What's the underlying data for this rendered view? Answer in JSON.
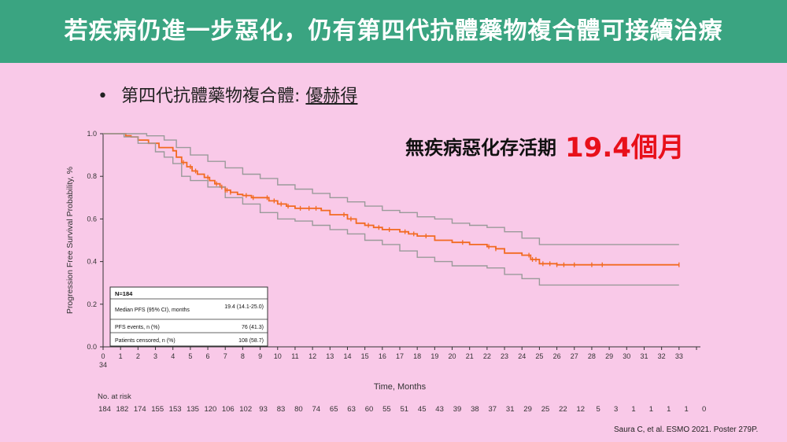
{
  "header": {
    "title": "若疾病仍進一步惡化，仍有第四代抗體藥物複合體可接續治療",
    "bg_color": "#3aa481"
  },
  "bullet": {
    "dot": "•",
    "prefix": "第四代抗體藥物複合體: ",
    "drug": "優赫得"
  },
  "pfs_callout": {
    "label": "無疾病惡化存活期",
    "value": "19.4個月",
    "value_color": "#e8101a"
  },
  "citation": "Saura C, et al. ESMO 2021. Poster 279P.",
  "stats_table": {
    "n_label": "N=184",
    "rows": [
      {
        "label": "Median PFS (95% CI), months",
        "value": "19.4 (14.1-25.0)"
      },
      {
        "label": "PFS events, n (%)",
        "value": "76 (41.3)"
      },
      {
        "label": "Patients censored, n (%)",
        "value": "108 (58.7)"
      }
    ]
  },
  "chart_data": {
    "type": "line",
    "title": "",
    "xlabel": "Time, Months",
    "ylabel": "Progression Free Survival Probability, %",
    "xlim": [
      0,
      34
    ],
    "ylim": [
      0,
      1.0
    ],
    "x_ticks": [
      0,
      1,
      2,
      3,
      4,
      5,
      6,
      7,
      8,
      9,
      10,
      11,
      12,
      13,
      14,
      15,
      16,
      17,
      18,
      19,
      20,
      21,
      22,
      23,
      24,
      25,
      26,
      27,
      28,
      29,
      30,
      31,
      32,
      33,
      34
    ],
    "x_tick_labels": [
      "0",
      "1",
      "2",
      "3",
      "4",
      "5",
      "6",
      "7",
      "8",
      "9",
      "10",
      "11",
      "12",
      "13",
      "14",
      "15",
      "16",
      "17",
      "18",
      "19",
      "20",
      "21",
      "22",
      "23",
      "24",
      "25",
      "26",
      "27",
      "28",
      "29",
      "30",
      "31",
      "32",
      "33",
      "34"
    ],
    "y_ticks": [
      "0.0",
      "0.2",
      "0.4",
      "0.6",
      "0.8",
      "1.0"
    ],
    "series": [
      {
        "role": "km",
        "color": "#f26a21",
        "x": [
          0,
          1.3,
          1.6,
          2.0,
          2.6,
          3.2,
          4.0,
          4.2,
          4.5,
          4.8,
          5.1,
          5.4,
          5.8,
          6.1,
          6.4,
          6.7,
          7.0,
          7.3,
          7.7,
          8.0,
          8.5,
          9.0,
          9.5,
          10.0,
          10.5,
          11.0,
          12.0,
          12.5,
          13.0,
          14.0,
          14.5,
          15.0,
          15.5,
          16.0,
          17.0,
          17.5,
          18.0,
          19.0,
          20.0,
          21.0,
          22.0,
          22.5,
          23.0,
          24.0,
          24.5,
          25.0,
          26.0,
          30.0,
          33.0
        ],
        "y": [
          1.0,
          0.99,
          0.985,
          0.97,
          0.955,
          0.935,
          0.92,
          0.89,
          0.865,
          0.845,
          0.825,
          0.81,
          0.795,
          0.78,
          0.765,
          0.75,
          0.735,
          0.725,
          0.715,
          0.71,
          0.7,
          0.7,
          0.685,
          0.67,
          0.66,
          0.65,
          0.65,
          0.64,
          0.62,
          0.6,
          0.58,
          0.57,
          0.56,
          0.55,
          0.54,
          0.53,
          0.52,
          0.5,
          0.49,
          0.48,
          0.47,
          0.46,
          0.44,
          0.43,
          0.41,
          0.39,
          0.385,
          0.385,
          0.385
        ]
      },
      {
        "role": "ci_upper",
        "color": "#9a9a9a",
        "x": [
          0,
          2.5,
          3.5,
          4.2,
          5.0,
          6.0,
          7.0,
          8.0,
          9.0,
          10.0,
          11.0,
          12.0,
          13.0,
          14.0,
          15.0,
          16.0,
          17.0,
          18.0,
          19.0,
          20.0,
          21.0,
          22.0,
          23.0,
          24.0,
          25.0,
          33.0
        ],
        "y": [
          1.0,
          0.99,
          0.97,
          0.935,
          0.9,
          0.87,
          0.84,
          0.81,
          0.79,
          0.76,
          0.74,
          0.72,
          0.7,
          0.68,
          0.66,
          0.64,
          0.63,
          0.61,
          0.6,
          0.58,
          0.57,
          0.56,
          0.54,
          0.51,
          0.48,
          0.48
        ]
      },
      {
        "role": "ci_lower",
        "color": "#9a9a9a",
        "x": [
          0,
          1.2,
          2.0,
          3.0,
          3.5,
          4.0,
          4.5,
          5.0,
          6.0,
          7.0,
          8.0,
          9.0,
          10.0,
          11.0,
          12.0,
          13.0,
          14.0,
          15.0,
          16.0,
          17.0,
          18.0,
          19.0,
          20.0,
          21.0,
          22.0,
          23.0,
          24.0,
          25.0,
          33.0
        ],
        "y": [
          1.0,
          0.985,
          0.955,
          0.915,
          0.89,
          0.86,
          0.8,
          0.78,
          0.75,
          0.7,
          0.67,
          0.63,
          0.6,
          0.59,
          0.57,
          0.55,
          0.53,
          0.5,
          0.48,
          0.45,
          0.42,
          0.4,
          0.38,
          0.38,
          0.37,
          0.34,
          0.32,
          0.29,
          0.29
        ]
      }
    ],
    "censor_marks_x": [
      4.6,
      5.0,
      5.3,
      6.0,
      6.5,
      6.8,
      7.0,
      7.1,
      7.3,
      8.2,
      8.6,
      9.4,
      9.8,
      10.2,
      10.6,
      11.3,
      11.8,
      12.2,
      13.8,
      14.2,
      15.2,
      15.8,
      16.4,
      17.3,
      17.8,
      18.5,
      20.6,
      22.1,
      22.5,
      24.4,
      24.6,
      24.8,
      25.2,
      25.6,
      26.0,
      26.4,
      27.0,
      28.0,
      28.6,
      33.0
    ],
    "grid": false,
    "legend": "none"
  },
  "at_risk": {
    "title": "No. at risk",
    "counts": [
      "184",
      "182",
      "174",
      "155",
      "153",
      "135",
      "120",
      "106",
      "102",
      "93",
      "83",
      "80",
      "74",
      "65",
      "63",
      "60",
      "55",
      "51",
      "45",
      "43",
      "39",
      "38",
      "37",
      "31",
      "29",
      "25",
      "22",
      "12",
      "5",
      "3",
      "1",
      "1",
      "1",
      "1",
      "0"
    ]
  }
}
